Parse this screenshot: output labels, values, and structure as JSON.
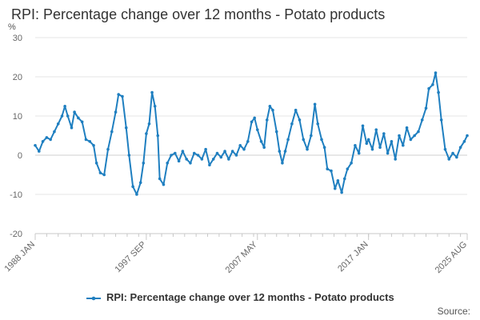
{
  "title": "RPI: Percentage change over 12 months - Potato products",
  "source_label": "Source:",
  "chart_data": {
    "type": "line",
    "title": "RPI: Percentage change over 12 months - Potato products",
    "ylabel": "%",
    "xlabel": "",
    "ylim": [
      -20,
      30
    ],
    "yticks": [
      -20,
      -10,
      0,
      10,
      20,
      30
    ],
    "xrange": [
      "1988 JAN",
      "2025 AUG"
    ],
    "xtick_labels": [
      "1988 JAN",
      "1997 SEP",
      "2007 MAY",
      "2017 JAN",
      "2025 AUG"
    ],
    "legend_position": "bottom",
    "series": [
      {
        "name": "RPI: Percentage change over 12 months - Potato products",
        "color": "#1f7fc0",
        "points": [
          [
            "1988-01",
            2.5
          ],
          [
            "1988-05",
            1.0
          ],
          [
            "1988-09",
            3.5
          ],
          [
            "1989-01",
            4.5
          ],
          [
            "1989-05",
            4.0
          ],
          [
            "1989-09",
            6.0
          ],
          [
            "1990-01",
            8.0
          ],
          [
            "1990-05",
            10.0
          ],
          [
            "1990-08",
            12.5
          ],
          [
            "1990-11",
            10.0
          ],
          [
            "1991-03",
            7.0
          ],
          [
            "1991-06",
            11.0
          ],
          [
            "1991-10",
            9.5
          ],
          [
            "1992-02",
            8.5
          ],
          [
            "1992-06",
            4.0
          ],
          [
            "1992-10",
            3.5
          ],
          [
            "1993-02",
            2.5
          ],
          [
            "1993-05",
            -2.0
          ],
          [
            "1993-09",
            -4.5
          ],
          [
            "1994-01",
            -5.0
          ],
          [
            "1994-05",
            1.5
          ],
          [
            "1994-09",
            6.0
          ],
          [
            "1995-01",
            11.0
          ],
          [
            "1995-04",
            15.5
          ],
          [
            "1995-08",
            15.0
          ],
          [
            "1995-12",
            7.0
          ],
          [
            "1996-03",
            0.0
          ],
          [
            "1996-07",
            -8.0
          ],
          [
            "1996-11",
            -10.0
          ],
          [
            "1997-03",
            -7.0
          ],
          [
            "1997-06",
            -2.0
          ],
          [
            "1997-09",
            5.5
          ],
          [
            "1997-12",
            8.0
          ],
          [
            "1998-03",
            16.0
          ],
          [
            "1998-06",
            12.5
          ],
          [
            "1998-09",
            5.0
          ],
          [
            "1998-11",
            -6.0
          ],
          [
            "1999-03",
            -7.5
          ],
          [
            "1999-07",
            -2.0
          ],
          [
            "1999-11",
            0.0
          ],
          [
            "2000-03",
            0.5
          ],
          [
            "2000-07",
            -1.5
          ],
          [
            "2000-11",
            1.0
          ],
          [
            "2001-03",
            -1.0
          ],
          [
            "2001-07",
            -2.0
          ],
          [
            "2001-11",
            0.5
          ],
          [
            "2002-03",
            0.0
          ],
          [
            "2002-07",
            -1.0
          ],
          [
            "2002-11",
            1.5
          ],
          [
            "2003-03",
            -2.5
          ],
          [
            "2003-07",
            -1.0
          ],
          [
            "2003-11",
            0.5
          ],
          [
            "2004-03",
            -0.5
          ],
          [
            "2004-07",
            1.0
          ],
          [
            "2004-11",
            -1.0
          ],
          [
            "2005-03",
            1.0
          ],
          [
            "2005-07",
            0.0
          ],
          [
            "2005-11",
            2.5
          ],
          [
            "2006-03",
            1.5
          ],
          [
            "2006-07",
            3.5
          ],
          [
            "2006-11",
            8.5
          ],
          [
            "2007-02",
            9.5
          ],
          [
            "2007-05",
            6.5
          ],
          [
            "2007-09",
            3.5
          ],
          [
            "2007-12",
            2.0
          ],
          [
            "2008-03",
            9.0
          ],
          [
            "2008-06",
            12.5
          ],
          [
            "2008-09",
            11.5
          ],
          [
            "2009-01",
            6.0
          ],
          [
            "2009-04",
            1.0
          ],
          [
            "2009-07",
            -2.0
          ],
          [
            "2009-10",
            1.0
          ],
          [
            "2010-01",
            4.0
          ],
          [
            "2010-05",
            8.0
          ],
          [
            "2010-09",
            11.5
          ],
          [
            "2011-01",
            9.0
          ],
          [
            "2011-05",
            4.0
          ],
          [
            "2011-09",
            1.5
          ],
          [
            "2012-01",
            5.0
          ],
          [
            "2012-05",
            13.0
          ],
          [
            "2012-08",
            8.0
          ],
          [
            "2012-12",
            4.0
          ],
          [
            "2013-03",
            2.0
          ],
          [
            "2013-06",
            -3.5
          ],
          [
            "2013-10",
            -4.0
          ],
          [
            "2014-02",
            -8.5
          ],
          [
            "2014-05",
            -6.5
          ],
          [
            "2014-09",
            -9.5
          ],
          [
            "2014-12",
            -6.0
          ],
          [
            "2015-03",
            -3.5
          ],
          [
            "2015-07",
            -2.0
          ],
          [
            "2015-11",
            2.5
          ],
          [
            "2016-03",
            0.5
          ],
          [
            "2016-07",
            7.5
          ],
          [
            "2016-11",
            3.0
          ],
          [
            "2017-01",
            4.0
          ],
          [
            "2017-05",
            1.5
          ],
          [
            "2017-09",
            6.5
          ],
          [
            "2018-01",
            2.0
          ],
          [
            "2018-05",
            5.5
          ],
          [
            "2018-09",
            0.5
          ],
          [
            "2019-01",
            3.5
          ],
          [
            "2019-05",
            -1.0
          ],
          [
            "2019-09",
            5.0
          ],
          [
            "2020-01",
            2.5
          ],
          [
            "2020-05",
            7.0
          ],
          [
            "2020-09",
            4.0
          ],
          [
            "2021-01",
            5.0
          ],
          [
            "2021-05",
            6.0
          ],
          [
            "2021-09",
            9.0
          ],
          [
            "2022-01",
            12.0
          ],
          [
            "2022-04",
            17.0
          ],
          [
            "2022-08",
            18.0
          ],
          [
            "2022-11",
            21.0
          ],
          [
            "2023-02",
            16.0
          ],
          [
            "2023-05",
            9.0
          ],
          [
            "2023-09",
            1.5
          ],
          [
            "2024-01",
            -1.0
          ],
          [
            "2024-05",
            0.5
          ],
          [
            "2024-09",
            -0.5
          ],
          [
            "2025-01",
            2.0
          ],
          [
            "2025-05",
            3.5
          ],
          [
            "2025-08",
            5.0
          ]
        ]
      }
    ]
  }
}
